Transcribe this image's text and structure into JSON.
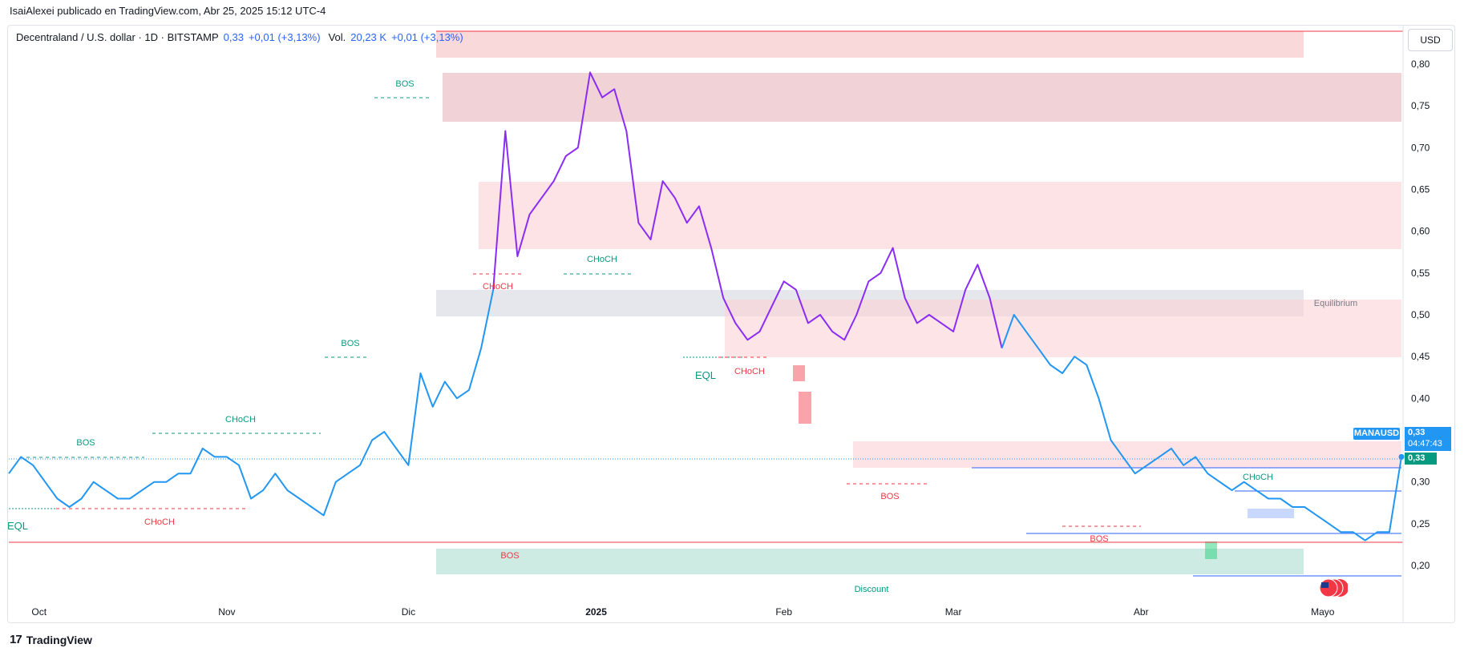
{
  "header": {
    "published_line": "IsaiAlexei publicado en TradingView.com, Abr 25, 2025 15:12 UTC-4"
  },
  "legend": {
    "symbol": "Decentraland / U.S. dollar · 1D · BITSTAMP",
    "price": "0,33",
    "change": "+0,01 (+3,13%)",
    "vol_label": "Vol.",
    "vol_value": "20,23 K",
    "vol_change": "+0,01 (+3,13%)"
  },
  "currency": "USD",
  "price_tags": {
    "symbol_tag": "MANAUSD",
    "last_price": "0,33",
    "countdown": "04:47:43",
    "close_price": "0,33"
  },
  "colors": {
    "line_blue": "#2196f3",
    "line_purple": "#8b2cf5",
    "bullish": "#089981",
    "bearish": "#f23645",
    "premium_zone": "#f8c4c8",
    "discount_zone": "#b2dfd4",
    "equilibrium_zone": "#d1d4dc"
  },
  "footer": {
    "brand": "TradingView"
  },
  "chart_data": {
    "type": "line",
    "title": "Decentraland / U.S. dollar · 1D · BITSTAMP",
    "ylim": [
      0.16,
      0.82
    ],
    "y_ticks": [
      "0,80",
      "0,75",
      "0,70",
      "0,65",
      "0,60",
      "0,55",
      "0,50",
      "0,45",
      "0,40",
      "0,35",
      "0,30",
      "0,25",
      "0,20"
    ],
    "y_tick_values": [
      0.8,
      0.75,
      0.7,
      0.65,
      0.6,
      0.55,
      0.5,
      0.45,
      0.4,
      0.35,
      0.3,
      0.25,
      0.2
    ],
    "x_range": [
      "2024-09-26",
      "2025-05-14"
    ],
    "x_ticks": [
      {
        "label": "Oct",
        "date": "2024-10-01"
      },
      {
        "label": "Nov",
        "date": "2024-11-01"
      },
      {
        "label": "Dic",
        "date": "2024-12-01"
      },
      {
        "label": "2025",
        "date": "2025-01-01"
      },
      {
        "label": "Feb",
        "date": "2025-02-01"
      },
      {
        "label": "Mar",
        "date": "2025-03-01"
      },
      {
        "label": "Abr",
        "date": "2025-04-01"
      },
      {
        "label": "Mayo",
        "date": "2025-05-01"
      }
    ],
    "series": [
      {
        "points": [
          [
            "2024-09-26",
            0.31
          ],
          [
            "2024-09-28",
            0.33
          ],
          [
            "2024-09-30",
            0.32
          ],
          [
            "2024-10-02",
            0.3
          ],
          [
            "2024-10-04",
            0.28
          ],
          [
            "2024-10-06",
            0.27
          ],
          [
            "2024-10-08",
            0.28
          ],
          [
            "2024-10-10",
            0.3
          ],
          [
            "2024-10-12",
            0.29
          ],
          [
            "2024-10-14",
            0.28
          ],
          [
            "2024-10-16",
            0.28
          ],
          [
            "2024-10-18",
            0.29
          ],
          [
            "2024-10-20",
            0.3
          ],
          [
            "2024-10-22",
            0.3
          ],
          [
            "2024-10-24",
            0.31
          ],
          [
            "2024-10-26",
            0.31
          ],
          [
            "2024-10-28",
            0.34
          ],
          [
            "2024-10-30",
            0.33
          ],
          [
            "2024-11-01",
            0.33
          ],
          [
            "2024-11-03",
            0.32
          ],
          [
            "2024-11-05",
            0.28
          ],
          [
            "2024-11-07",
            0.29
          ],
          [
            "2024-11-09",
            0.31
          ],
          [
            "2024-11-11",
            0.29
          ],
          [
            "2024-11-13",
            0.28
          ],
          [
            "2024-11-15",
            0.27
          ],
          [
            "2024-11-17",
            0.26
          ],
          [
            "2024-11-19",
            0.3
          ],
          [
            "2024-11-21",
            0.31
          ],
          [
            "2024-11-23",
            0.32
          ],
          [
            "2024-11-25",
            0.35
          ],
          [
            "2024-11-27",
            0.36
          ],
          [
            "2024-11-29",
            0.34
          ],
          [
            "2024-12-01",
            0.32
          ],
          [
            "2024-12-03",
            0.43
          ],
          [
            "2024-12-05",
            0.39
          ],
          [
            "2024-12-07",
            0.42
          ],
          [
            "2024-12-09",
            0.4
          ],
          [
            "2024-12-11",
            0.41
          ],
          [
            "2024-12-13",
            0.46
          ],
          [
            "2024-12-15",
            0.53
          ],
          [
            "2024-12-17",
            0.72
          ],
          [
            "2024-12-19",
            0.57
          ],
          [
            "2024-12-21",
            0.62
          ],
          [
            "2024-12-23",
            0.64
          ],
          [
            "2024-12-25",
            0.66
          ],
          [
            "2024-12-27",
            0.69
          ],
          [
            "2024-12-29",
            0.7
          ],
          [
            "2024-12-31",
            0.79
          ],
          [
            "2025-01-02",
            0.76
          ],
          [
            "2025-01-04",
            0.77
          ],
          [
            "2025-01-06",
            0.72
          ],
          [
            "2025-01-08",
            0.61
          ],
          [
            "2025-01-10",
            0.59
          ],
          [
            "2025-01-12",
            0.66
          ],
          [
            "2025-01-14",
            0.64
          ],
          [
            "2025-01-16",
            0.61
          ],
          [
            "2025-01-18",
            0.63
          ],
          [
            "2025-01-20",
            0.58
          ],
          [
            "2025-01-22",
            0.52
          ],
          [
            "2025-01-24",
            0.49
          ],
          [
            "2025-01-26",
            0.47
          ],
          [
            "2025-01-28",
            0.48
          ],
          [
            "2025-01-30",
            0.51
          ],
          [
            "2025-02-01",
            0.54
          ],
          [
            "2025-02-03",
            0.53
          ],
          [
            "2025-02-05",
            0.49
          ],
          [
            "2025-02-07",
            0.5
          ],
          [
            "2025-02-09",
            0.48
          ],
          [
            "2025-02-11",
            0.47
          ],
          [
            "2025-02-13",
            0.5
          ],
          [
            "2025-02-15",
            0.54
          ],
          [
            "2025-02-17",
            0.55
          ],
          [
            "2025-02-19",
            0.58
          ],
          [
            "2025-02-21",
            0.52
          ],
          [
            "2025-02-23",
            0.49
          ],
          [
            "2025-02-25",
            0.5
          ],
          [
            "2025-02-27",
            0.49
          ],
          [
            "2025-03-01",
            0.48
          ],
          [
            "2025-03-03",
            0.53
          ],
          [
            "2025-03-05",
            0.56
          ],
          [
            "2025-03-07",
            0.52
          ],
          [
            "2025-03-09",
            0.46
          ],
          [
            "2025-03-11",
            0.5
          ],
          [
            "2025-03-13",
            0.48
          ],
          [
            "2025-03-15",
            0.46
          ],
          [
            "2025-03-17",
            0.44
          ],
          [
            "2025-03-19",
            0.43
          ],
          [
            "2025-03-21",
            0.45
          ],
          [
            "2025-03-23",
            0.44
          ],
          [
            "2025-03-25",
            0.4
          ],
          [
            "2025-03-27",
            0.35
          ],
          [
            "2025-03-29",
            0.33
          ],
          [
            "2025-03-31",
            0.31
          ],
          [
            "2025-04-02",
            0.32
          ],
          [
            "2025-04-04",
            0.33
          ],
          [
            "2025-04-06",
            0.34
          ],
          [
            "2025-04-08",
            0.32
          ],
          [
            "2025-04-10",
            0.33
          ],
          [
            "2025-04-12",
            0.31
          ],
          [
            "2025-04-14",
            0.3
          ],
          [
            "2025-04-16",
            0.29
          ],
          [
            "2025-04-18",
            0.3
          ],
          [
            "2025-04-20",
            0.29
          ],
          [
            "2025-04-22",
            0.28
          ],
          [
            "2025-04-24",
            0.28
          ],
          [
            "2025-04-26",
            0.27
          ],
          [
            "2025-04-28",
            0.27
          ],
          [
            "2025-04-30",
            0.26
          ],
          [
            "2025-05-02",
            0.25
          ],
          [
            "2025-05-04",
            0.24
          ],
          [
            "2025-05-06",
            0.24
          ],
          [
            "2025-05-08",
            0.23
          ],
          [
            "2025-05-10",
            0.24
          ],
          [
            "2025-05-12",
            0.24
          ],
          [
            "2025-05-14",
            0.33
          ]
        ]
      }
    ]
  }
}
